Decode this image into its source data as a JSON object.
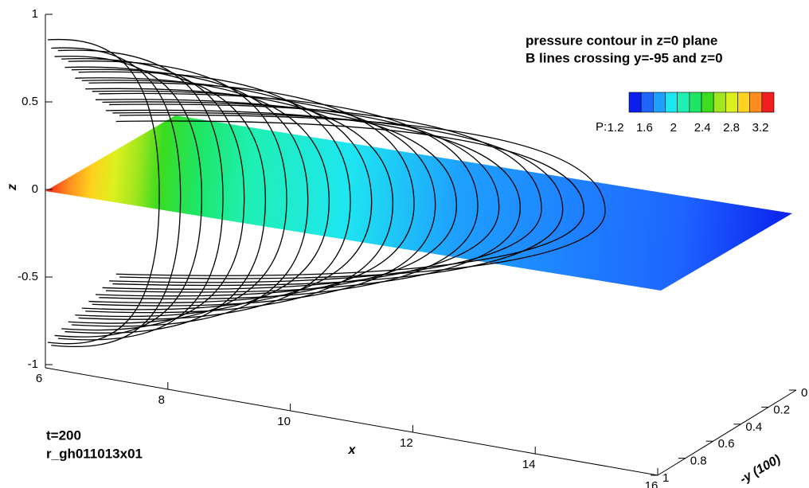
{
  "chart_data": {
    "type": "contour3d",
    "title_lines": [
      "pressure contour in z=0 plane",
      "B lines crossing y=-95 and z=0"
    ],
    "colorbar": {
      "label": "P:",
      "ticks": [
        1.2,
        1.6,
        2,
        2.4,
        2.8,
        3.2
      ],
      "colors": [
        "#0a1ef0",
        "#1e64ff",
        "#1ea0ff",
        "#1ee6f0",
        "#1ef0b4",
        "#1ee664",
        "#3cdc1e",
        "#a0e61e",
        "#dcf01e",
        "#ffd21e",
        "#ff8c1e",
        "#f01e1e"
      ]
    },
    "zlabel": "z",
    "zlim": [
      -1,
      1
    ],
    "zticks": [
      -1,
      -0.5,
      0,
      0.5,
      1
    ],
    "xlabel": "x",
    "xlim": [
      6,
      16
    ],
    "xticks": [
      6,
      8,
      10,
      12,
      14,
      16
    ],
    "ylabel": "-y (100)",
    "ylim": [
      0,
      1
    ],
    "yticks": [
      0,
      0.2,
      0.4,
      0.6,
      0.8,
      1
    ],
    "annotations": [
      "t=200",
      "r_gh011013x01"
    ]
  }
}
